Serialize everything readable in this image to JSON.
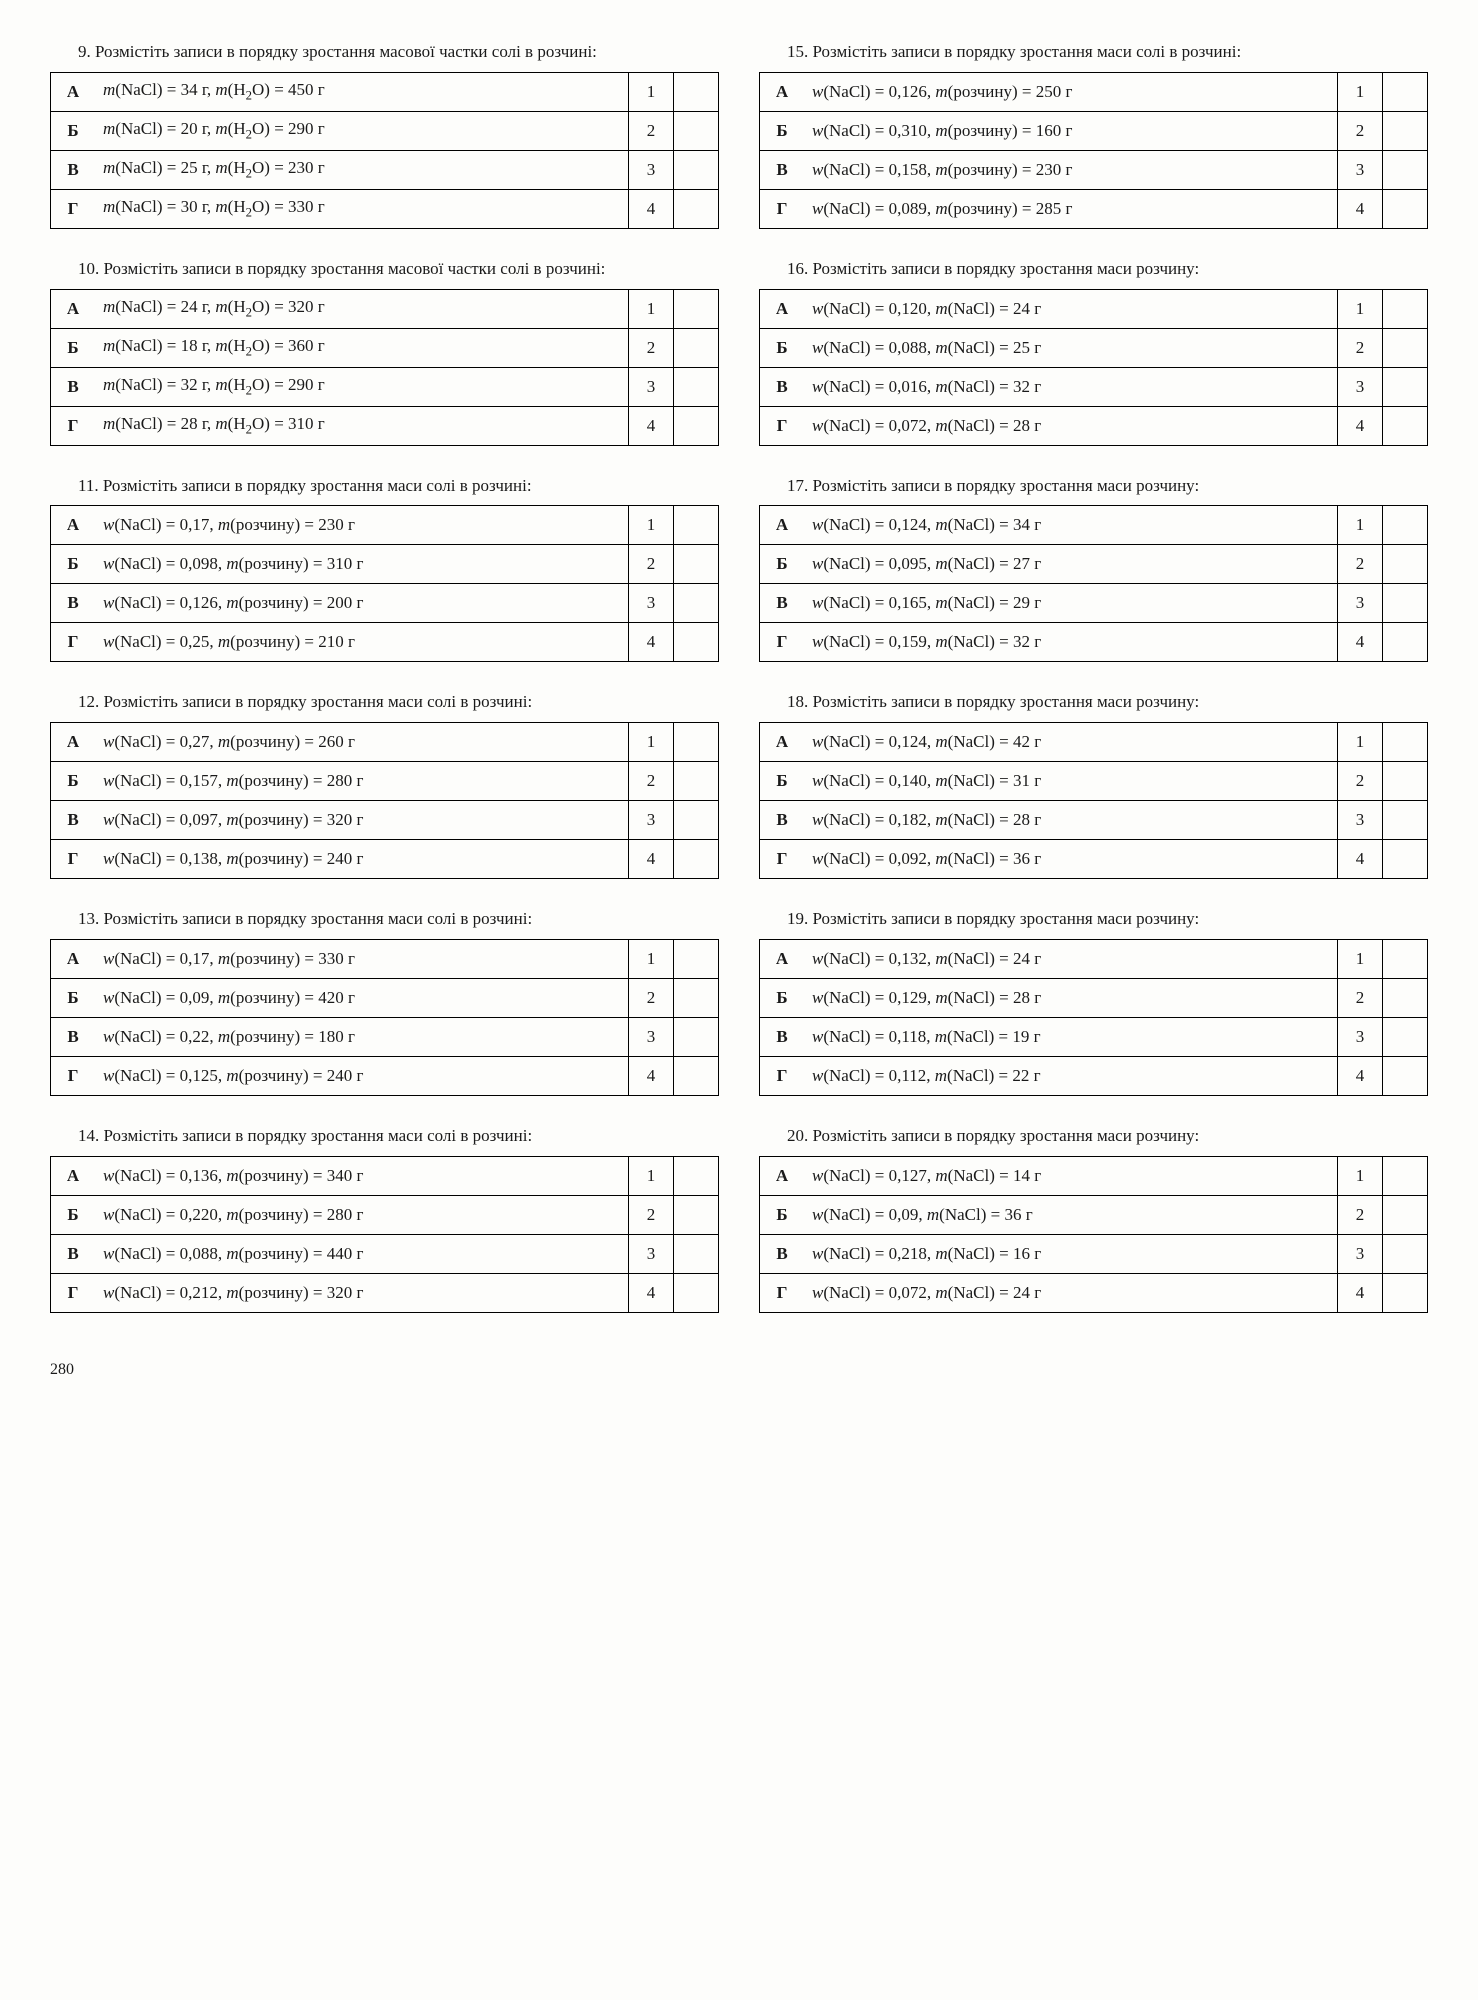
{
  "page_number": "280",
  "letters": [
    "А",
    "Б",
    "В",
    "Г"
  ],
  "numbers": [
    "1",
    "2",
    "3",
    "4"
  ],
  "left": [
    {
      "num": "9",
      "prompt": "Розмістіть записи в порядку зростання масової частки солі в розчині:",
      "rows": [
        "m(NaCl) = 34 г, m(H₂O) = 450 г",
        "m(NaCl) = 20 г, m(H₂O) = 290 г",
        "m(NaCl) = 25 г, m(H₂O) = 230 г",
        "m(NaCl) = 30 г, m(H₂O) = 330 г"
      ]
    },
    {
      "num": "10",
      "prompt": "Розмістіть записи в порядку зростання масової частки солі в розчині:",
      "rows": [
        "m(NaCl) = 24 г, m(H₂O) = 320 г",
        "m(NaCl) = 18 г, m(H₂O) = 360 г",
        "m(NaCl) = 32 г, m(H₂O) = 290 г",
        "m(NaCl) = 28 г, m(H₂O) = 310 г"
      ]
    },
    {
      "num": "11",
      "prompt": "Розмістіть записи в порядку зростання маси солі в розчині:",
      "rows": [
        "w(NaCl) = 0,17, m(розчину) = 230 г",
        "w(NaCl) = 0,098, m(розчину) = 310 г",
        "w(NaCl) = 0,126, m(розчину) = 200 г",
        "w(NaCl) = 0,25, m(розчину) = 210 г"
      ]
    },
    {
      "num": "12",
      "prompt": "Розмістіть записи в порядку зростання маси солі в розчині:",
      "rows": [
        "w(NaCl) = 0,27, m(розчину) = 260 г",
        "w(NaCl) = 0,157, m(розчину) = 280 г",
        "w(NaCl) = 0,097, m(розчину) = 320 г",
        "w(NaCl) = 0,138, m(розчину) = 240 г"
      ]
    },
    {
      "num": "13",
      "prompt": "Розмістіть записи в порядку зростання маси солі в розчині:",
      "rows": [
        "w(NaCl) = 0,17, m(розчину) = 330 г",
        "w(NaCl) = 0,09, m(розчину) = 420 г",
        "w(NaCl) = 0,22, m(розчину) = 180 г",
        "w(NaCl) = 0,125, m(розчину) = 240 г"
      ]
    },
    {
      "num": "14",
      "prompt": "Розмістіть записи в порядку зростання маси солі в розчині:",
      "rows": [
        "w(NaCl) = 0,136, m(розчину) = 340 г",
        "w(NaCl) = 0,220, m(розчину) = 280 г",
        "w(NaCl) = 0,088, m(розчину) = 440 г",
        "w(NaCl) = 0,212, m(розчину) = 320 г"
      ]
    }
  ],
  "right": [
    {
      "num": "15",
      "prompt": "Розмістіть записи в порядку зростання маси солі в розчині:",
      "rows": [
        "w(NaCl) = 0,126, m(розчину) = 250 г",
        "w(NaCl) = 0,310, m(розчину) = 160 г",
        "w(NaCl) = 0,158, m(розчину) = 230 г",
        "w(NaCl) = 0,089, m(розчину) = 285 г"
      ]
    },
    {
      "num": "16",
      "prompt": "Розмістіть записи в порядку зростання маси розчину:",
      "rows": [
        "w(NaCl) = 0,120, m(NaCl) = 24 г",
        "w(NaCl) = 0,088, m(NaCl) = 25 г",
        "w(NaCl) = 0,016, m(NaCl) = 32 г",
        "w(NaCl) = 0,072, m(NaCl) = 28 г"
      ]
    },
    {
      "num": "17",
      "prompt": "Розмістіть записи в порядку зростання маси розчину:",
      "rows": [
        "w(NaCl) = 0,124, m(NaCl) = 34 г",
        "w(NaCl) = 0,095, m(NaCl) = 27 г",
        "w(NaCl) = 0,165, m(NaCl) = 29 г",
        "w(NaCl) = 0,159, m(NaCl) = 32 г"
      ]
    },
    {
      "num": "18",
      "prompt": "Розмістіть записи в порядку зростання маси розчину:",
      "rows": [
        "w(NaCl) = 0,124, m(NaCl) = 42 г",
        "w(NaCl) = 0,140, m(NaCl) = 31 г",
        "w(NaCl) = 0,182, m(NaCl) = 28 г",
        "w(NaCl) = 0,092, m(NaCl) = 36 г"
      ]
    },
    {
      "num": "19",
      "prompt": "Розмістіть записи в порядку зростання маси розчину:",
      "rows": [
        "w(NaCl) = 0,132, m(NaCl) = 24 г",
        "w(NaCl) = 0,129, m(NaCl) = 28 г",
        "w(NaCl) = 0,118, m(NaCl) = 19 г",
        "w(NaCl) = 0,112, m(NaCl) = 22 г"
      ]
    },
    {
      "num": "20",
      "prompt": "Розмістіть записи в порядку зростання маси розчину:",
      "rows": [
        "w(NaCl) = 0,127, m(NaCl) = 14 г",
        "w(NaCl) = 0,09, m(NaCl) = 36 г",
        "w(NaCl) = 0,218, m(NaCl) = 16 г",
        "w(NaCl) = 0,072, m(NaCl) = 24 г"
      ]
    }
  ]
}
